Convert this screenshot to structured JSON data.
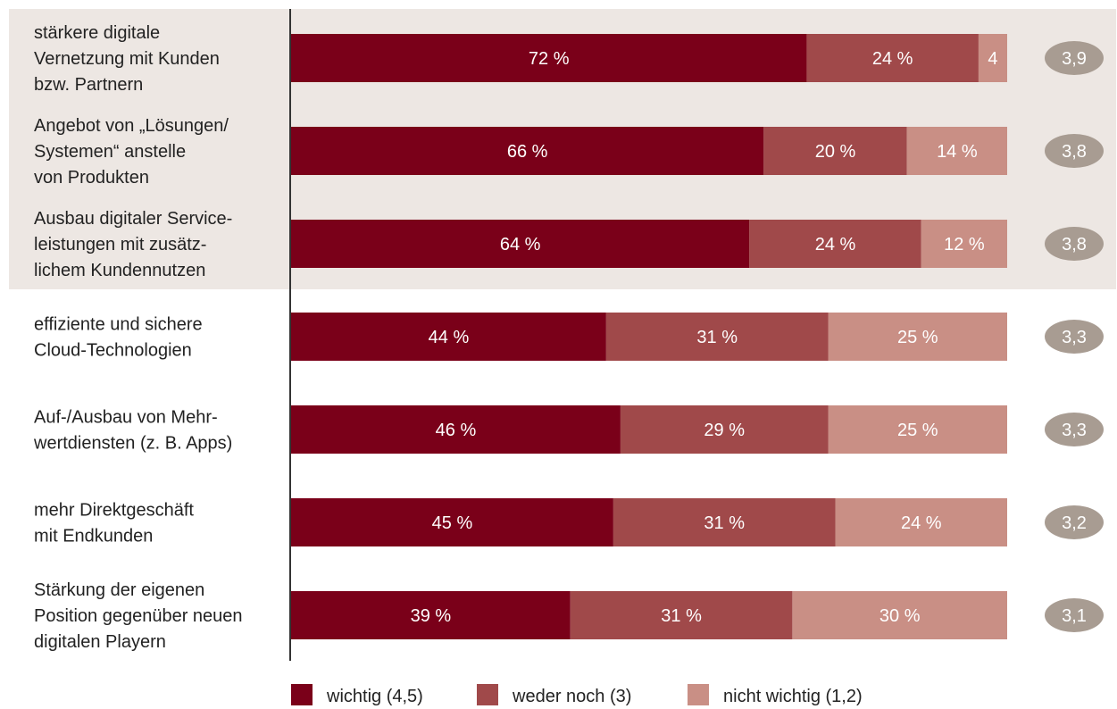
{
  "chart_data": {
    "type": "bar",
    "orientation": "horizontal",
    "stacked": true,
    "percent_suffix": " %",
    "categories": [
      [
        "stärkere digitale",
        "Vernetzung mit Kunden",
        "bzw. Partnern"
      ],
      [
        "Angebot von „Lösungen/",
        "Systemen“ anstelle",
        "von Produkten"
      ],
      [
        "Ausbau digitaler Service-",
        "leistungen mit zusätz-",
        "lichem Kundennutzen"
      ],
      [
        "effiziente und sichere",
        "Cloud-Technologien"
      ],
      [
        "Auf-/Ausbau von Mehr-",
        "wertdiensten (z. B. Apps)"
      ],
      [
        "mehr Direktgeschäft",
        "mit Endkunden"
      ],
      [
        "Stärkung der eigenen",
        "Position gegenüber neuen",
        "digitalen Playern"
      ]
    ],
    "series": [
      {
        "name": "wichtig (4,5)",
        "color": "#7a0019",
        "values": [
          72,
          66,
          64,
          44,
          46,
          45,
          39
        ]
      },
      {
        "name": "weder noch (3)",
        "color": "#a0494a",
        "values": [
          24,
          20,
          24,
          31,
          29,
          31,
          31
        ]
      },
      {
        "name": "nicht wichtig (1,2)",
        "color": "#c98f85",
        "values": [
          4,
          14,
          12,
          25,
          25,
          24,
          30
        ]
      }
    ],
    "segment_labels": [
      [
        "72 %",
        "24 %",
        "4"
      ],
      [
        "66 %",
        "20 %",
        "14 %"
      ],
      [
        "64 %",
        "24 %",
        "12 %"
      ],
      [
        "44 %",
        "31 %",
        "25 %"
      ],
      [
        "46 %",
        "29 %",
        "25 %"
      ],
      [
        "45 %",
        "31 %",
        "24 %"
      ],
      [
        "39 %",
        "31 %",
        "30 %"
      ]
    ],
    "averages": [
      "3,9",
      "3,8",
      "3,8",
      "3,3",
      "3,3",
      "3,2",
      "3,1"
    ],
    "highlighted_rows": [
      0,
      1,
      2
    ],
    "xlim": [
      0,
      100
    ],
    "legend_position": "bottom",
    "colors": {
      "highlight_band": "#ede7e3",
      "average_badge": "#a89c92",
      "axis": "#333333"
    }
  }
}
